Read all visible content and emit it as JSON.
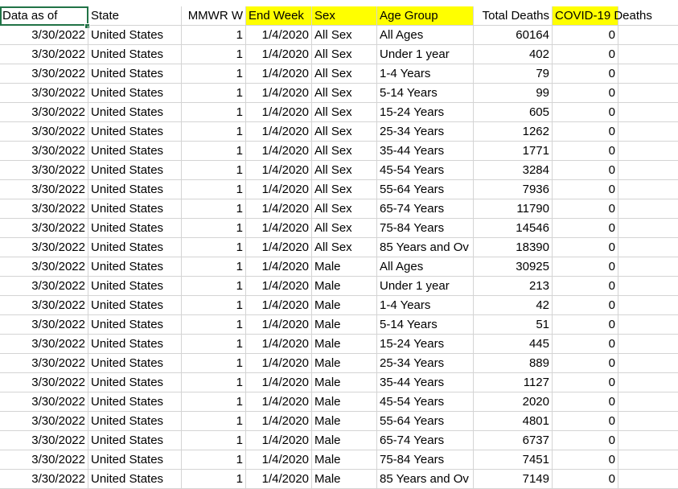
{
  "headers": [
    "Data as of",
    "State",
    "MMWR W",
    "End Week",
    "Sex",
    "Age Group",
    "Total Deaths",
    "COVID-19 Deaths",
    ""
  ],
  "highlight_color": "#ffff00",
  "selection_color": "#217346",
  "rows": [
    [
      "3/30/2022",
      "United States",
      "1",
      "1/4/2020",
      "All Sex",
      "All Ages",
      "60164",
      "0"
    ],
    [
      "3/30/2022",
      "United States",
      "1",
      "1/4/2020",
      "All Sex",
      "Under 1 year",
      "402",
      "0"
    ],
    [
      "3/30/2022",
      "United States",
      "1",
      "1/4/2020",
      "All Sex",
      "1-4 Years",
      "79",
      "0"
    ],
    [
      "3/30/2022",
      "United States",
      "1",
      "1/4/2020",
      "All Sex",
      "5-14 Years",
      "99",
      "0"
    ],
    [
      "3/30/2022",
      "United States",
      "1",
      "1/4/2020",
      "All Sex",
      "15-24 Years",
      "605",
      "0"
    ],
    [
      "3/30/2022",
      "United States",
      "1",
      "1/4/2020",
      "All Sex",
      "25-34 Years",
      "1262",
      "0"
    ],
    [
      "3/30/2022",
      "United States",
      "1",
      "1/4/2020",
      "All Sex",
      "35-44 Years",
      "1771",
      "0"
    ],
    [
      "3/30/2022",
      "United States",
      "1",
      "1/4/2020",
      "All Sex",
      "45-54 Years",
      "3284",
      "0"
    ],
    [
      "3/30/2022",
      "United States",
      "1",
      "1/4/2020",
      "All Sex",
      "55-64 Years",
      "7936",
      "0"
    ],
    [
      "3/30/2022",
      "United States",
      "1",
      "1/4/2020",
      "All Sex",
      "65-74 Years",
      "11790",
      "0"
    ],
    [
      "3/30/2022",
      "United States",
      "1",
      "1/4/2020",
      "All Sex",
      "75-84 Years",
      "14546",
      "0"
    ],
    [
      "3/30/2022",
      "United States",
      "1",
      "1/4/2020",
      "All Sex",
      "85 Years and Ov",
      "18390",
      "0"
    ],
    [
      "3/30/2022",
      "United States",
      "1",
      "1/4/2020",
      "Male",
      "All Ages",
      "30925",
      "0"
    ],
    [
      "3/30/2022",
      "United States",
      "1",
      "1/4/2020",
      "Male",
      "Under 1 year",
      "213",
      "0"
    ],
    [
      "3/30/2022",
      "United States",
      "1",
      "1/4/2020",
      "Male",
      "1-4 Years",
      "42",
      "0"
    ],
    [
      "3/30/2022",
      "United States",
      "1",
      "1/4/2020",
      "Male",
      "5-14 Years",
      "51",
      "0"
    ],
    [
      "3/30/2022",
      "United States",
      "1",
      "1/4/2020",
      "Male",
      "15-24 Years",
      "445",
      "0"
    ],
    [
      "3/30/2022",
      "United States",
      "1",
      "1/4/2020",
      "Male",
      "25-34 Years",
      "889",
      "0"
    ],
    [
      "3/30/2022",
      "United States",
      "1",
      "1/4/2020",
      "Male",
      "35-44 Years",
      "1127",
      "0"
    ],
    [
      "3/30/2022",
      "United States",
      "1",
      "1/4/2020",
      "Male",
      "45-54 Years",
      "2020",
      "0"
    ],
    [
      "3/30/2022",
      "United States",
      "1",
      "1/4/2020",
      "Male",
      "55-64 Years",
      "4801",
      "0"
    ],
    [
      "3/30/2022",
      "United States",
      "1",
      "1/4/2020",
      "Male",
      "65-74 Years",
      "6737",
      "0"
    ],
    [
      "3/30/2022",
      "United States",
      "1",
      "1/4/2020",
      "Male",
      "75-84 Years",
      "7451",
      "0"
    ],
    [
      "3/30/2022",
      "United States",
      "1",
      "1/4/2020",
      "Male",
      "85 Years and Ov",
      "7149",
      "0"
    ]
  ]
}
